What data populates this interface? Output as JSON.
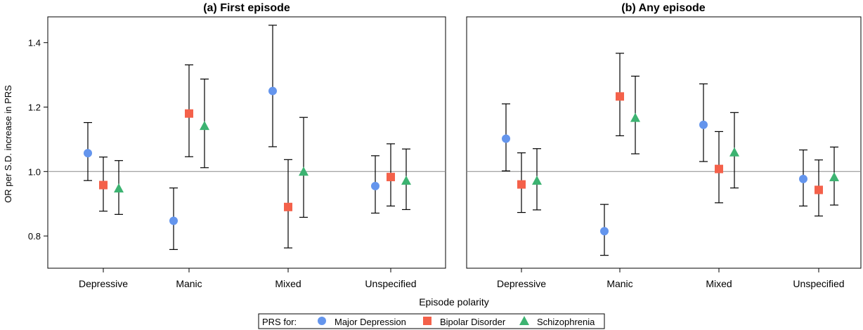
{
  "figure": {
    "ylabel": "OR per S.D. increase in PRS",
    "xlabel": "Episode polarity",
    "legend": {
      "prefix": "PRS for:",
      "entries": [
        {
          "name": "Major Depression",
          "color": "#6495ED",
          "marker": "circle"
        },
        {
          "name": "Bipolar Disorder",
          "color": "#F4614A",
          "marker": "square"
        },
        {
          "name": "Schizophrenia",
          "color": "#3CB371",
          "marker": "triangle"
        }
      ]
    }
  },
  "chart_data": [
    {
      "type": "scatter",
      "subtype": "point-estimate with error bars",
      "title": "(a) First episode",
      "ylabel": "OR per S.D. increase in PRS",
      "xlabel": "Episode polarity",
      "categories": [
        "Depressive",
        "Manic",
        "Mixed",
        "Unspecified"
      ],
      "ylim": [
        0.7,
        1.48
      ],
      "yticks": [
        0.8,
        1.0,
        1.2,
        1.4
      ],
      "reference_line": 1.0,
      "series": [
        {
          "name": "Major Depression",
          "color": "#6495ED",
          "marker": "circle",
          "values": [
            1.057,
            0.847,
            1.25,
            0.955
          ],
          "lower": [
            0.972,
            0.758,
            1.077,
            0.871
          ],
          "upper": [
            1.152,
            0.949,
            1.454,
            1.049
          ]
        },
        {
          "name": "Bipolar Disorder",
          "color": "#F4614A",
          "marker": "square",
          "values": [
            0.958,
            1.18,
            0.89,
            0.983
          ],
          "lower": [
            0.877,
            1.046,
            0.763,
            0.893
          ],
          "upper": [
            1.045,
            1.331,
            1.037,
            1.086
          ]
        },
        {
          "name": "Schizophrenia",
          "color": "#3CB371",
          "marker": "triangle",
          "values": [
            0.948,
            1.142,
            1.0,
            0.972
          ],
          "lower": [
            0.867,
            1.012,
            0.858,
            0.882
          ],
          "upper": [
            1.034,
            1.287,
            1.168,
            1.07
          ]
        }
      ]
    },
    {
      "type": "scatter",
      "subtype": "point-estimate with error bars",
      "title": "(b) Any episode",
      "xlabel": "Episode polarity",
      "categories": [
        "Depressive",
        "Manic",
        "Mixed",
        "Unspecified"
      ],
      "ylim": [
        0.7,
        1.48
      ],
      "yticks": [
        0.8,
        1.0,
        1.2,
        1.4
      ],
      "reference_line": 1.0,
      "series": [
        {
          "name": "Major Depression",
          "color": "#6495ED",
          "marker": "circle",
          "values": [
            1.102,
            0.815,
            1.145,
            0.977
          ],
          "lower": [
            1.002,
            0.74,
            1.031,
            0.893
          ],
          "upper": [
            1.21,
            0.898,
            1.272,
            1.067
          ]
        },
        {
          "name": "Bipolar Disorder",
          "color": "#F4614A",
          "marker": "square",
          "values": [
            0.96,
            1.233,
            1.008,
            0.943
          ],
          "lower": [
            0.873,
            1.111,
            0.903,
            0.862
          ],
          "upper": [
            1.058,
            1.367,
            1.124,
            1.036
          ]
        },
        {
          "name": "Schizophrenia",
          "color": "#3CB371",
          "marker": "triangle",
          "values": [
            0.972,
            1.167,
            1.06,
            0.983
          ],
          "lower": [
            0.881,
            1.055,
            0.949,
            0.896
          ],
          "upper": [
            1.071,
            1.296,
            1.183,
            1.076
          ]
        }
      ]
    }
  ]
}
